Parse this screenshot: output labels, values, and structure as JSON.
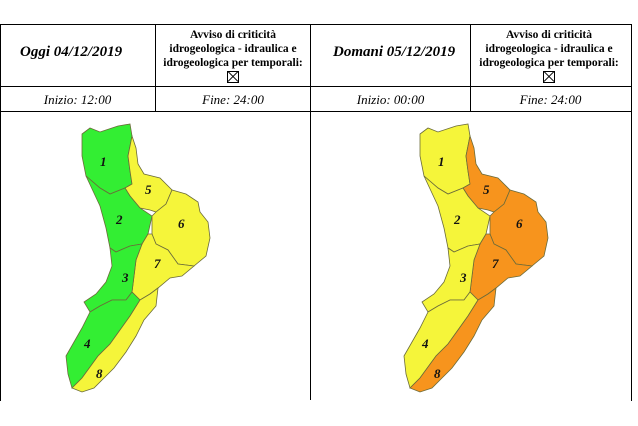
{
  "today": {
    "date_label": "Oggi 04/12/2019",
    "avviso_lines": [
      "Avviso di criticità",
      "idrogeologica - idraulica e",
      "idrogeologica per temporali:"
    ],
    "start_label": "Inizio: 12:00",
    "end_label": "Fine: 24:00",
    "zones": [
      {
        "id": "1",
        "level": "green"
      },
      {
        "id": "2",
        "level": "green"
      },
      {
        "id": "3",
        "level": "green"
      },
      {
        "id": "4",
        "level": "green"
      },
      {
        "id": "5",
        "level": "yellow"
      },
      {
        "id": "6",
        "level": "yellow"
      },
      {
        "id": "7",
        "level": "yellow"
      },
      {
        "id": "8",
        "level": "yellow"
      }
    ]
  },
  "tomorrow": {
    "date_label": "Domani 05/12/2019",
    "avviso_lines": [
      "Avviso di criticità",
      "idrogeologica - idraulica e",
      "idrogeologica per temporali:"
    ],
    "start_label": "Inizio: 00:00",
    "end_label": "Fine: 24:00",
    "zones": [
      {
        "id": "1",
        "level": "yellow"
      },
      {
        "id": "2",
        "level": "yellow"
      },
      {
        "id": "3",
        "level": "yellow"
      },
      {
        "id": "4",
        "level": "yellow"
      },
      {
        "id": "5",
        "level": "orange"
      },
      {
        "id": "6",
        "level": "orange"
      },
      {
        "id": "7",
        "level": "orange"
      },
      {
        "id": "8",
        "level": "orange"
      }
    ]
  },
  "colors": {
    "green": "#33ee33",
    "yellow": "#f5f53a",
    "orange": "#f7941d",
    "border": "#6b6b3a"
  }
}
